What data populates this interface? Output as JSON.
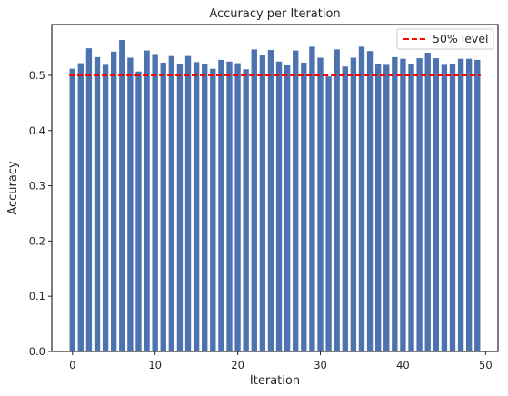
{
  "chart_data": {
    "type": "bar",
    "title": "Accuracy per Iteration",
    "xlabel": "Iteration",
    "ylabel": "Accuracy",
    "x": [
      0,
      1,
      2,
      3,
      4,
      5,
      6,
      7,
      8,
      9,
      10,
      11,
      12,
      13,
      14,
      15,
      16,
      17,
      18,
      19,
      20,
      21,
      22,
      23,
      24,
      25,
      26,
      27,
      28,
      29,
      30,
      31,
      32,
      33,
      34,
      35,
      36,
      37,
      38,
      39,
      40,
      41,
      42,
      43,
      44,
      45,
      46,
      47,
      48,
      49
    ],
    "values": [
      0.512,
      0.522,
      0.549,
      0.533,
      0.519,
      0.543,
      0.564,
      0.532,
      0.507,
      0.545,
      0.537,
      0.523,
      0.535,
      0.521,
      0.535,
      0.524,
      0.521,
      0.512,
      0.528,
      0.525,
      0.522,
      0.511,
      0.547,
      0.536,
      0.546,
      0.525,
      0.518,
      0.545,
      0.523,
      0.552,
      0.532,
      0.498,
      0.547,
      0.516,
      0.532,
      0.552,
      0.544,
      0.521,
      0.519,
      0.533,
      0.53,
      0.521,
      0.531,
      0.541,
      0.531,
      0.519,
      0.52,
      0.53,
      0.53,
      0.528
    ],
    "bar_color": "#4c72b0",
    "xlim": [
      -2.5,
      51.5
    ],
    "ylim": [
      0,
      0.592
    ],
    "xticks": [
      0,
      10,
      20,
      30,
      40,
      50
    ],
    "yticks": [
      0.0,
      0.1,
      0.2,
      0.3,
      0.4,
      0.5
    ],
    "xtick_labels": [
      "0",
      "10",
      "20",
      "30",
      "40",
      "50"
    ],
    "ytick_labels": [
      "0.0",
      "0.1",
      "0.2",
      "0.3",
      "0.4",
      "0.5"
    ],
    "reference_line": {
      "y": 0.5,
      "x_range": [
        -0.4,
        49.4
      ],
      "label": "50% level",
      "color": "#ff0000",
      "style": "dashed"
    },
    "legend": {
      "position": "top-right",
      "entries": [
        "50% level"
      ]
    },
    "grid": false
  }
}
